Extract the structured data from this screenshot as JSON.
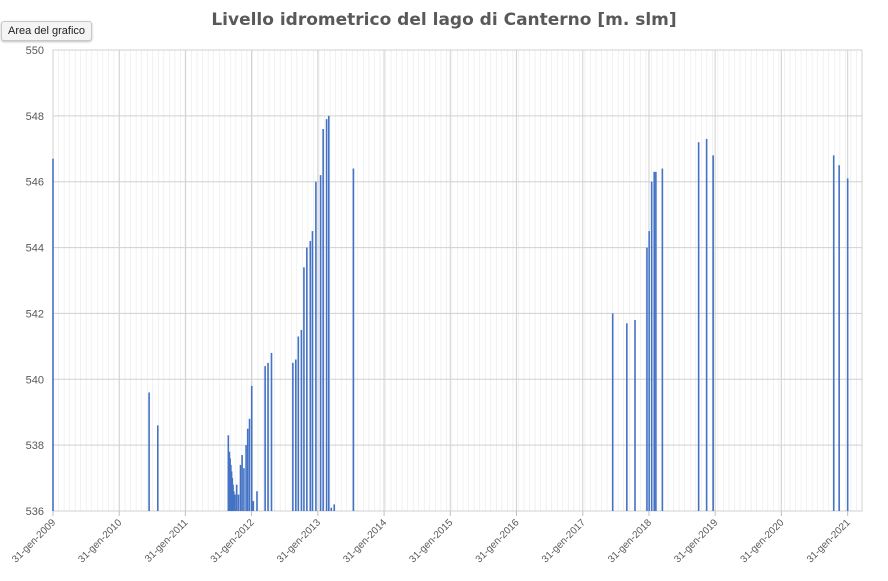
{
  "chart_title": "Livello idrometrico del lago di Canterno [m. slm]",
  "tooltip_label": "Area del grafico",
  "colors": {
    "bar": "#4472c4",
    "grid_major": "#d0d0d0",
    "grid_minor": "#e9e9e9",
    "text": "#595959"
  },
  "chart_data": {
    "type": "bar",
    "title": "Livello idrometrico del lago di Canterno [m. slm]",
    "xlabel": "",
    "ylabel": "",
    "ylim": [
      536,
      550
    ],
    "yticks": [
      "536",
      "538",
      "540",
      "542",
      "544",
      "546",
      "548",
      "550"
    ],
    "xlim": [
      "2009-01-31",
      "2021-04-20"
    ],
    "xticks": [
      "31-gen-2009",
      "31-gen-2010",
      "31-gen-2011",
      "31-gen-2012",
      "31-gen-2013",
      "31-gen-2014",
      "31-gen-2015",
      "31-gen-2016",
      "31-gen-2017",
      "31-gen-2018",
      "31-gen-2019",
      "31-gen-2020",
      "31-gen-2021"
    ],
    "grid": true,
    "x": [
      "2009-01-31",
      "2010-07-15",
      "2010-09-01",
      "2011-09-25",
      "2011-10-01",
      "2011-10-05",
      "2011-10-09",
      "2011-10-13",
      "2011-10-17",
      "2011-10-21",
      "2011-10-25",
      "2011-11-01",
      "2011-11-10",
      "2011-11-20",
      "2011-12-01",
      "2011-12-10",
      "2011-12-20",
      "2012-01-01",
      "2012-01-10",
      "2012-01-20",
      "2012-02-01",
      "2012-02-10",
      "2012-03-01",
      "2012-04-15",
      "2012-05-01",
      "2012-05-20",
      "2012-09-15",
      "2012-10-01",
      "2012-10-15",
      "2012-11-01",
      "2012-11-15",
      "2012-12-01",
      "2012-12-20",
      "2013-01-01",
      "2013-01-20",
      "2013-02-15",
      "2013-03-01",
      "2013-03-20",
      "2013-04-01",
      "2013-04-15",
      "2013-05-01",
      "2013-08-15",
      "2017-07-15",
      "2017-10-01",
      "2017-11-15",
      "2018-01-20",
      "2018-02-01",
      "2018-02-15",
      "2018-03-01",
      "2018-03-10",
      "2018-04-15",
      "2018-11-01",
      "2018-12-15",
      "2019-01-20",
      "2020-11-15",
      "2020-12-15",
      "2021-01-31"
    ],
    "values": [
      546.7,
      539.6,
      538.6,
      538.3,
      537.8,
      537.6,
      537.4,
      537.2,
      537.0,
      536.8,
      536.6,
      536.5,
      536.8,
      536.5,
      537.4,
      537.7,
      537.3,
      538.0,
      538.5,
      538.8,
      539.8,
      536.3,
      536.6,
      540.4,
      540.5,
      540.8,
      540.5,
      540.6,
      541.3,
      541.5,
      543.4,
      544.0,
      544.2,
      544.5,
      546.0,
      546.2,
      547.6,
      547.9,
      548.0,
      536.1,
      536.2,
      546.4,
      542.0,
      541.7,
      541.8,
      544.0,
      544.5,
      546.0,
      546.3,
      546.3,
      546.4,
      547.2,
      547.3,
      546.8,
      546.8,
      546.5,
      546.1
    ]
  }
}
